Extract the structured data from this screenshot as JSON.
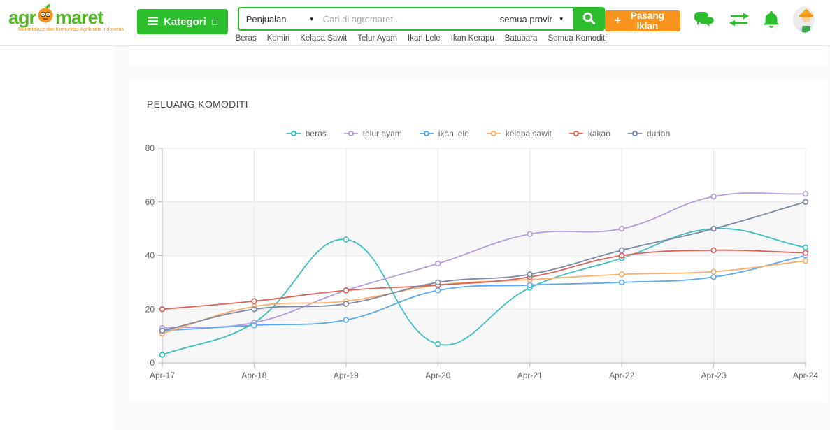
{
  "header": {
    "logo": {
      "prefix": "agr",
      "suffix": "maret",
      "tagline": "Marketplace dan Komunitas Agribisnis Indonesia"
    },
    "kategori_button": {
      "label": "Kategori",
      "caret": "□"
    },
    "search_bar": {
      "category_value": "Penjualan",
      "category_caret": "▼",
      "placeholder": "Cari di agromaret..",
      "province_value": "semua provir",
      "province_caret": "▼"
    },
    "nav_links": [
      "Beras",
      "Kemiri",
      "Kelapa Sawit",
      "Telur Ayam",
      "Ikan Lele",
      "Ikan Kerapu",
      "Batubara",
      "Semua Komoditi"
    ],
    "pasang_iklan": {
      "plus": "+",
      "label": "Pasang Iklan"
    }
  },
  "main": {
    "section_title": "PELUANG KOMODITI"
  },
  "chart_data": {
    "type": "line",
    "title": "PELUANG KOMODITI",
    "categories": [
      "Apr-17",
      "Apr-18",
      "Apr-19",
      "Apr-20",
      "Apr-21",
      "Apr-22",
      "Apr-23",
      "Apr-24"
    ],
    "series": [
      {
        "name": "beras",
        "color": "#3fc0c0",
        "values": [
          3,
          15,
          46,
          7,
          28,
          39,
          50,
          43
        ]
      },
      {
        "name": "telur ayam",
        "color": "#b39ddc",
        "values": [
          13,
          15,
          27,
          37,
          48,
          50,
          62,
          63
        ]
      },
      {
        "name": "ikan lele",
        "color": "#5ea9ef",
        "values": [
          12,
          14,
          16,
          27,
          29,
          30,
          32,
          40
        ]
      },
      {
        "name": "kelapa sawit",
        "color": "#fcaf6d",
        "values": [
          11,
          21,
          23,
          29,
          31,
          33,
          34,
          38
        ]
      },
      {
        "name": "kakao",
        "color": "#dc6359",
        "values": [
          20,
          23,
          27,
          29,
          32,
          40,
          42,
          41
        ]
      },
      {
        "name": "durian",
        "color": "#7e89a6",
        "values": [
          12,
          20,
          22,
          30,
          33,
          42,
          50,
          60
        ]
      }
    ],
    "xlabel": "",
    "ylabel": "",
    "ylim": [
      0,
      80
    ],
    "yticks": [
      0,
      20,
      40,
      60,
      80
    ],
    "legend_position": "top",
    "grid": true,
    "band_fill_ranges": [
      [
        0,
        20
      ],
      [
        40,
        60
      ]
    ],
    "band_color": "#f7f7f7"
  },
  "colors": {
    "accent_green": "#2dbe2d",
    "accent_orange": "#f7941d",
    "logo_green": "#56b42c",
    "page_bg": "#fafafa"
  }
}
